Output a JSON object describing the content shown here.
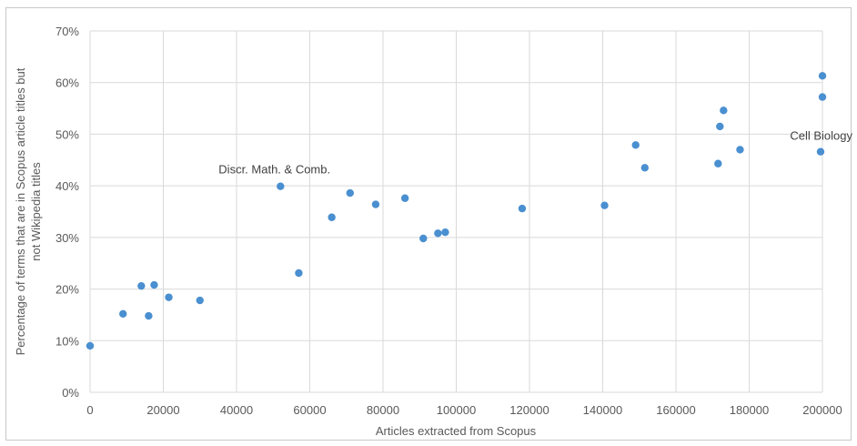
{
  "chart_data": {
    "type": "scatter",
    "xlabel": "Articles extracted from Scopus",
    "ylabel": "Percentage of terms that are in Scopus article titles but not Wikipedia titles",
    "xlim": [
      0,
      200000
    ],
    "ylim": [
      0,
      70
    ],
    "x_ticks": [
      "0",
      "20000",
      "40000",
      "60000",
      "80000",
      "100000",
      "120000",
      "140000",
      "160000",
      "180000",
      "200000"
    ],
    "y_ticks": [
      "0%",
      "10%",
      "20%",
      "30%",
      "40%",
      "50%",
      "60%",
      "70%"
    ],
    "grid": true,
    "marker_color": "#4a8fd0",
    "points": [
      {
        "x": 0,
        "y": 9.0
      },
      {
        "x": 9000,
        "y": 15.2
      },
      {
        "x": 14000,
        "y": 20.6
      },
      {
        "x": 16000,
        "y": 14.8
      },
      {
        "x": 17500,
        "y": 20.8
      },
      {
        "x": 21500,
        "y": 18.4
      },
      {
        "x": 30000,
        "y": 17.8
      },
      {
        "x": 52000,
        "y": 39.9
      },
      {
        "x": 57000,
        "y": 23.1
      },
      {
        "x": 66000,
        "y": 33.9
      },
      {
        "x": 71000,
        "y": 38.6
      },
      {
        "x": 78000,
        "y": 36.4
      },
      {
        "x": 86000,
        "y": 37.6
      },
      {
        "x": 91000,
        "y": 29.8
      },
      {
        "x": 95000,
        "y": 30.8
      },
      {
        "x": 97000,
        "y": 31.0
      },
      {
        "x": 118000,
        "y": 35.6
      },
      {
        "x": 140500,
        "y": 36.2
      },
      {
        "x": 149000,
        "y": 47.9
      },
      {
        "x": 151500,
        "y": 43.5
      },
      {
        "x": 171500,
        "y": 44.3
      },
      {
        "x": 172000,
        "y": 51.5
      },
      {
        "x": 173000,
        "y": 54.6
      },
      {
        "x": 177500,
        "y": 47.0
      },
      {
        "x": 199500,
        "y": 46.6
      },
      {
        "x": 200000,
        "y": 57.2
      },
      {
        "x": 200000,
        "y": 61.3
      }
    ],
    "annotations": [
      {
        "text": "Discr. Math. & Comb.",
        "x": 52000,
        "y": 39.9
      },
      {
        "text": "Cell Biology",
        "x": 200000,
        "y": 46.6
      }
    ]
  }
}
